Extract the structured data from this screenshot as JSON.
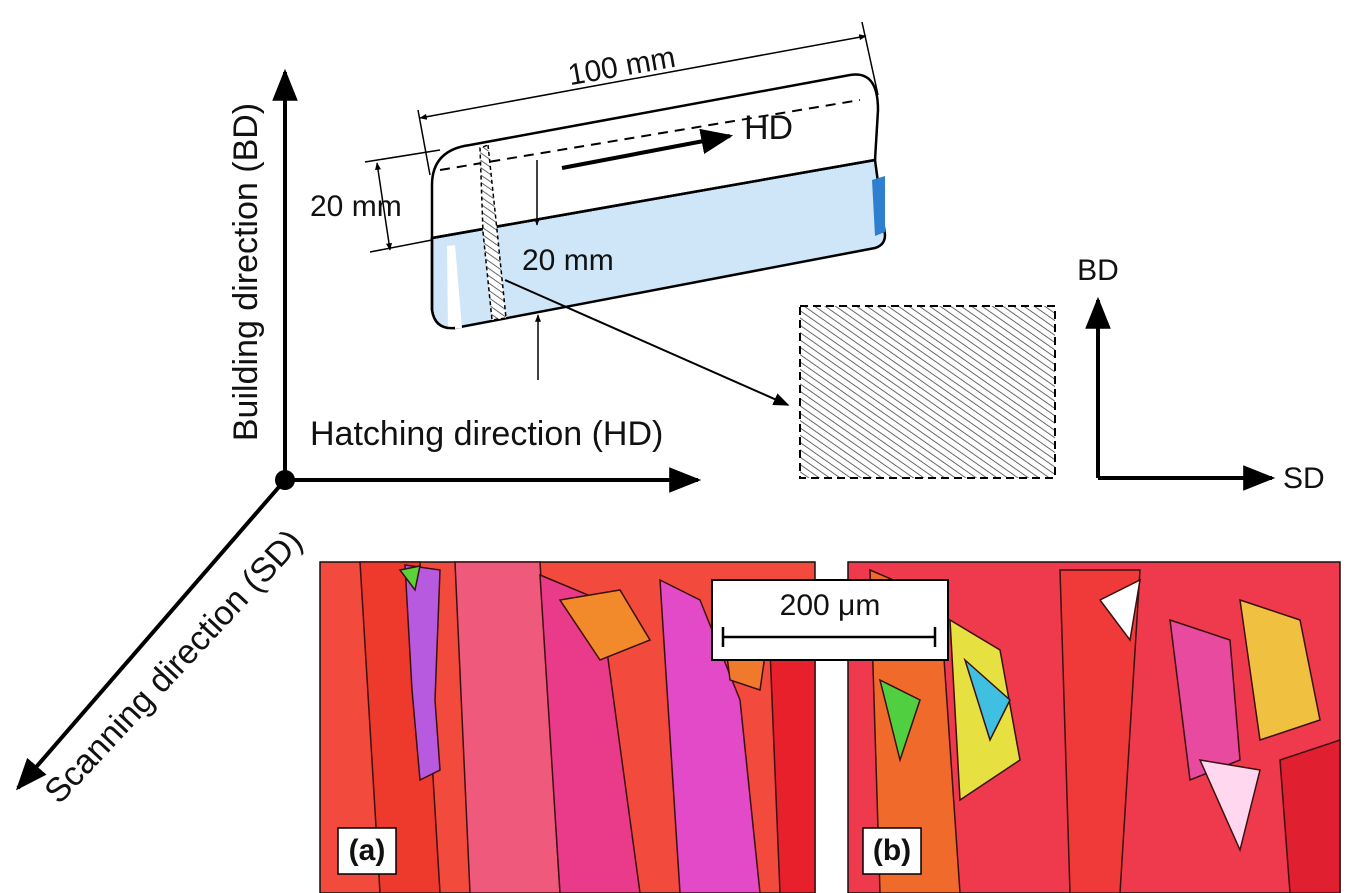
{
  "block": {
    "length_label": "100 mm",
    "direction_label": "HD",
    "height_label": "20 mm",
    "width_label": "20 mm"
  },
  "axes": {
    "vertical": "Building direction (BD)",
    "horizontal": "Hatching direction (HD)",
    "diagonal": "Scanning direction (SD)"
  },
  "section": {
    "vertical": "BD",
    "horizontal": "SD"
  },
  "maps": {
    "scale_bar": "200 μm",
    "panels": [
      "(a)",
      "(b)"
    ]
  }
}
